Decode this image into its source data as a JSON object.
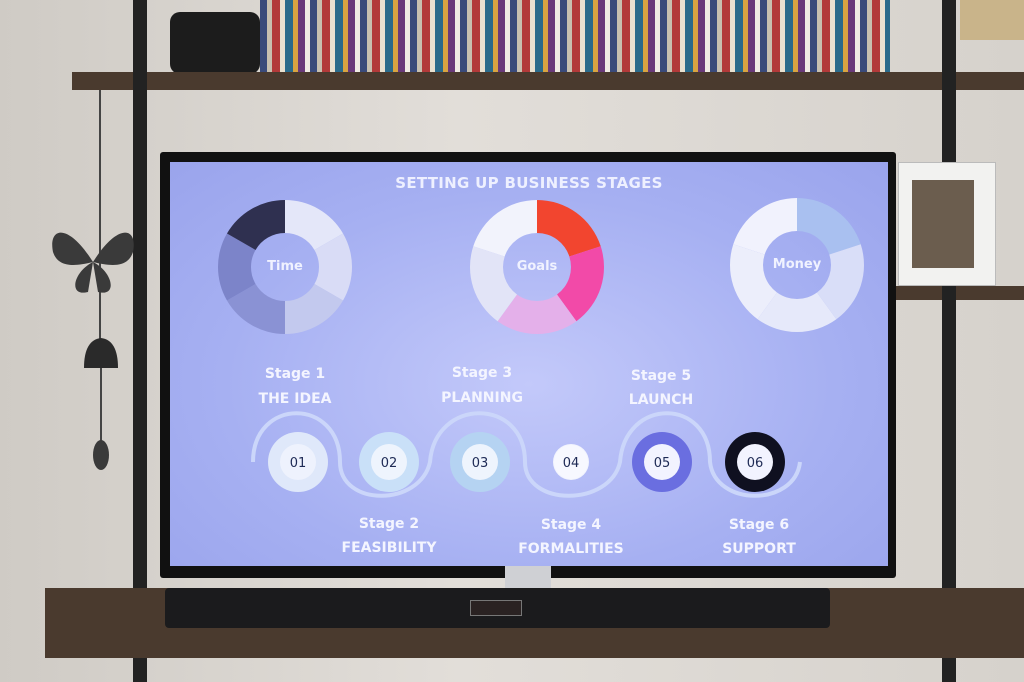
{
  "screen": {
    "title": "SETTING UP BUSINESS STAGES",
    "donuts": [
      {
        "label": "Time",
        "segments": [
          "#e4e7f9",
          "#d9dcf6",
          "#c3c9ee",
          "#8a92d4",
          "#7c84c9",
          "#2f3050"
        ]
      },
      {
        "label": "Goals",
        "segments": [
          "#f2452f",
          "#f24aa8",
          "#e4b0ea",
          "#e2e4f7",
          "#f2f3fc"
        ]
      },
      {
        "label": "Money",
        "segments": [
          "#a9c0f0",
          "#d9def8",
          "#e6e9fa",
          "#eceefb",
          "#f1f2fd"
        ]
      }
    ],
    "stages": [
      {
        "stage": "Stage 1",
        "name": "THE IDEA",
        "number": "01",
        "ring": "#dfe8fa",
        "core": "#eef2fd"
      },
      {
        "stage": "Stage 2",
        "name": "FEASIBILITY",
        "number": "02",
        "ring": "#c9e0f8",
        "core": "#eef4fd"
      },
      {
        "stage": "Stage 3",
        "name": "PLANNING",
        "number": "03",
        "ring": "#b5d3f2",
        "core": "#eef4fd"
      },
      {
        "stage": "Stage 4",
        "name": "FORMALITIES",
        "number": "04",
        "ring": "#f2f4fe",
        "core": "#f7f8ff"
      },
      {
        "stage": "Stage 5",
        "name": "LAUNCH",
        "number": "05",
        "ring": "#6a6ee0",
        "core": "#f2f3ff"
      },
      {
        "stage": "Stage 6",
        "name": "SUPPORT",
        "number": "06",
        "ring": "#0f1020",
        "core": "#f2f3ff"
      }
    ]
  }
}
